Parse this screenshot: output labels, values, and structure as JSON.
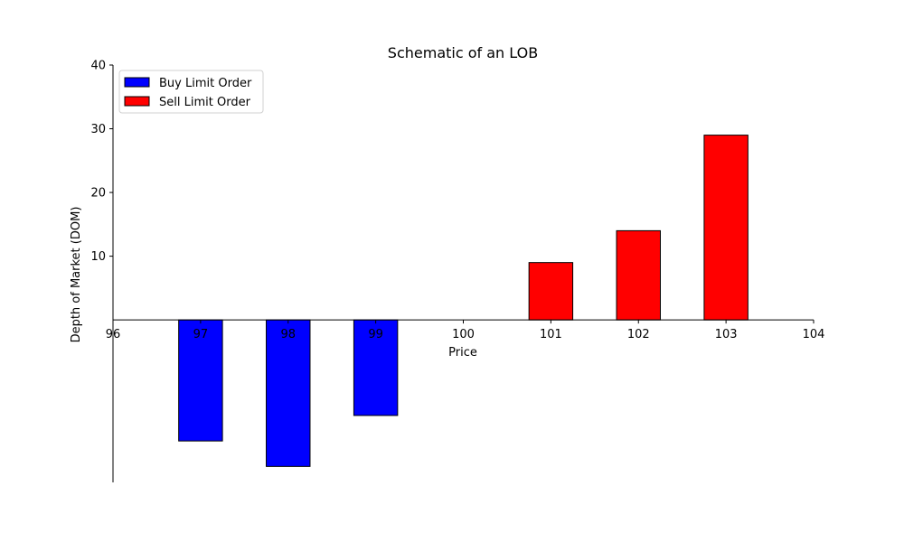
{
  "chart_data": {
    "type": "bar",
    "title": "Schematic of an LOB",
    "xlabel": "Price",
    "ylabel": "Depth of Market (DOM)",
    "xlim": [
      96,
      104
    ],
    "ylim": [
      -25.5,
      40
    ],
    "x_ticks": [
      96,
      97,
      98,
      99,
      100,
      101,
      102,
      103,
      104
    ],
    "y_ticks": [
      10,
      20,
      30,
      40
    ],
    "grid": false,
    "legend_position": "top-left",
    "series": [
      {
        "name": "Buy Limit Order",
        "color": "#0000ff",
        "points": [
          {
            "x": 97,
            "y": -19
          },
          {
            "x": 98,
            "y": -23
          },
          {
            "x": 99,
            "y": -15
          }
        ]
      },
      {
        "name": "Sell Limit Order",
        "color": "#ff0000",
        "points": [
          {
            "x": 101,
            "y": 9
          },
          {
            "x": 102,
            "y": 14
          },
          {
            "x": 103,
            "y": 29
          }
        ]
      }
    ]
  }
}
